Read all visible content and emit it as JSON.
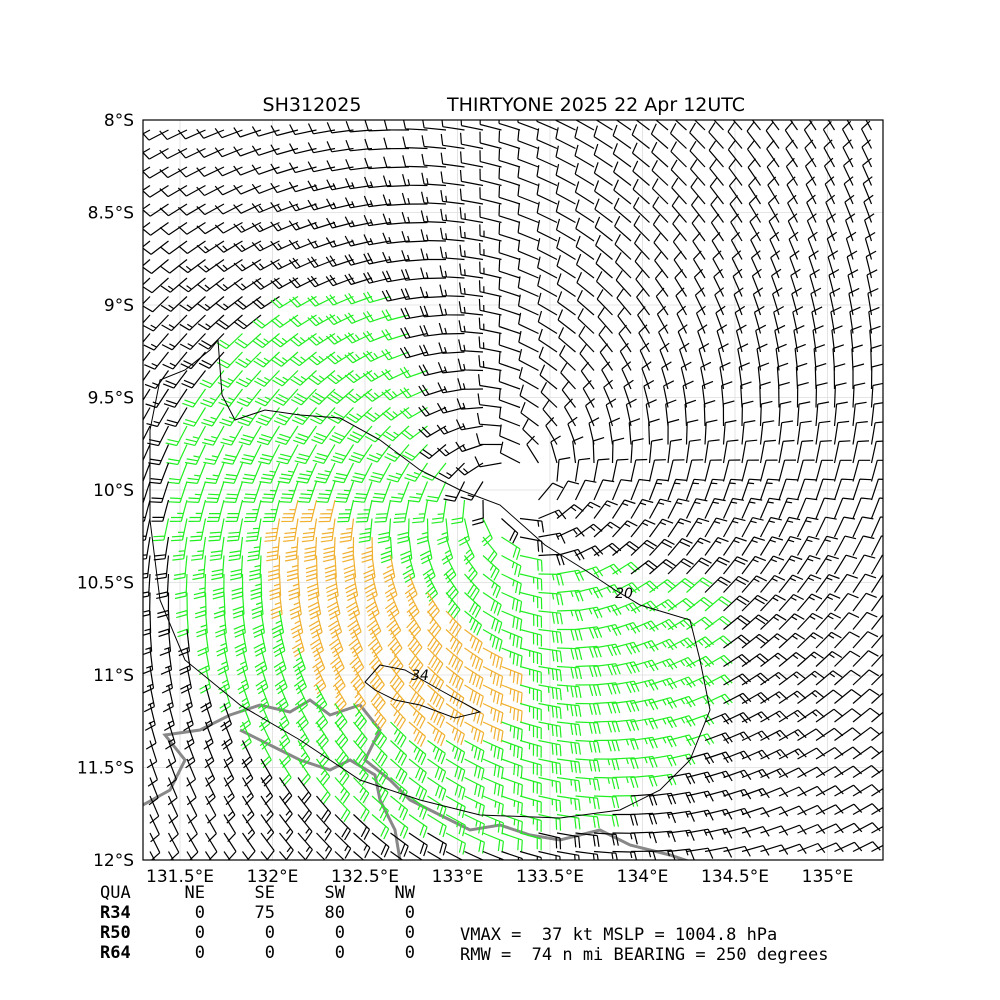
{
  "header": {
    "storm_id": "SH312025",
    "title": "THIRTYONE 2025 22 Apr 12UTC"
  },
  "map": {
    "lon_labels": [
      "131.5°E",
      "132°E",
      "132.5°E",
      "133°E",
      "133.5°E",
      "134°E",
      "134.5°E",
      "135°E"
    ],
    "lat_labels": [
      "8°S",
      "8.5°S",
      "9°S",
      "9.5°S",
      "10°S",
      "10.5°S",
      "11°S",
      "11.5°S",
      "12°S"
    ],
    "contour_labels": [
      "20",
      "34"
    ]
  },
  "table": {
    "header": [
      "QUA",
      "NE",
      "SE",
      "SW",
      "NW"
    ],
    "rows": [
      [
        "R34",
        "0",
        "75",
        "80",
        "0"
      ],
      [
        "R50",
        "0",
        "0",
        "0",
        "0"
      ],
      [
        "R64",
        "0",
        "0",
        "0",
        "0"
      ]
    ]
  },
  "info": [
    "VMAX =  37 kt MSLP = 1004.8 hPa",
    "RMW =  74 n mi BEARING = 250 degrees"
  ]
}
